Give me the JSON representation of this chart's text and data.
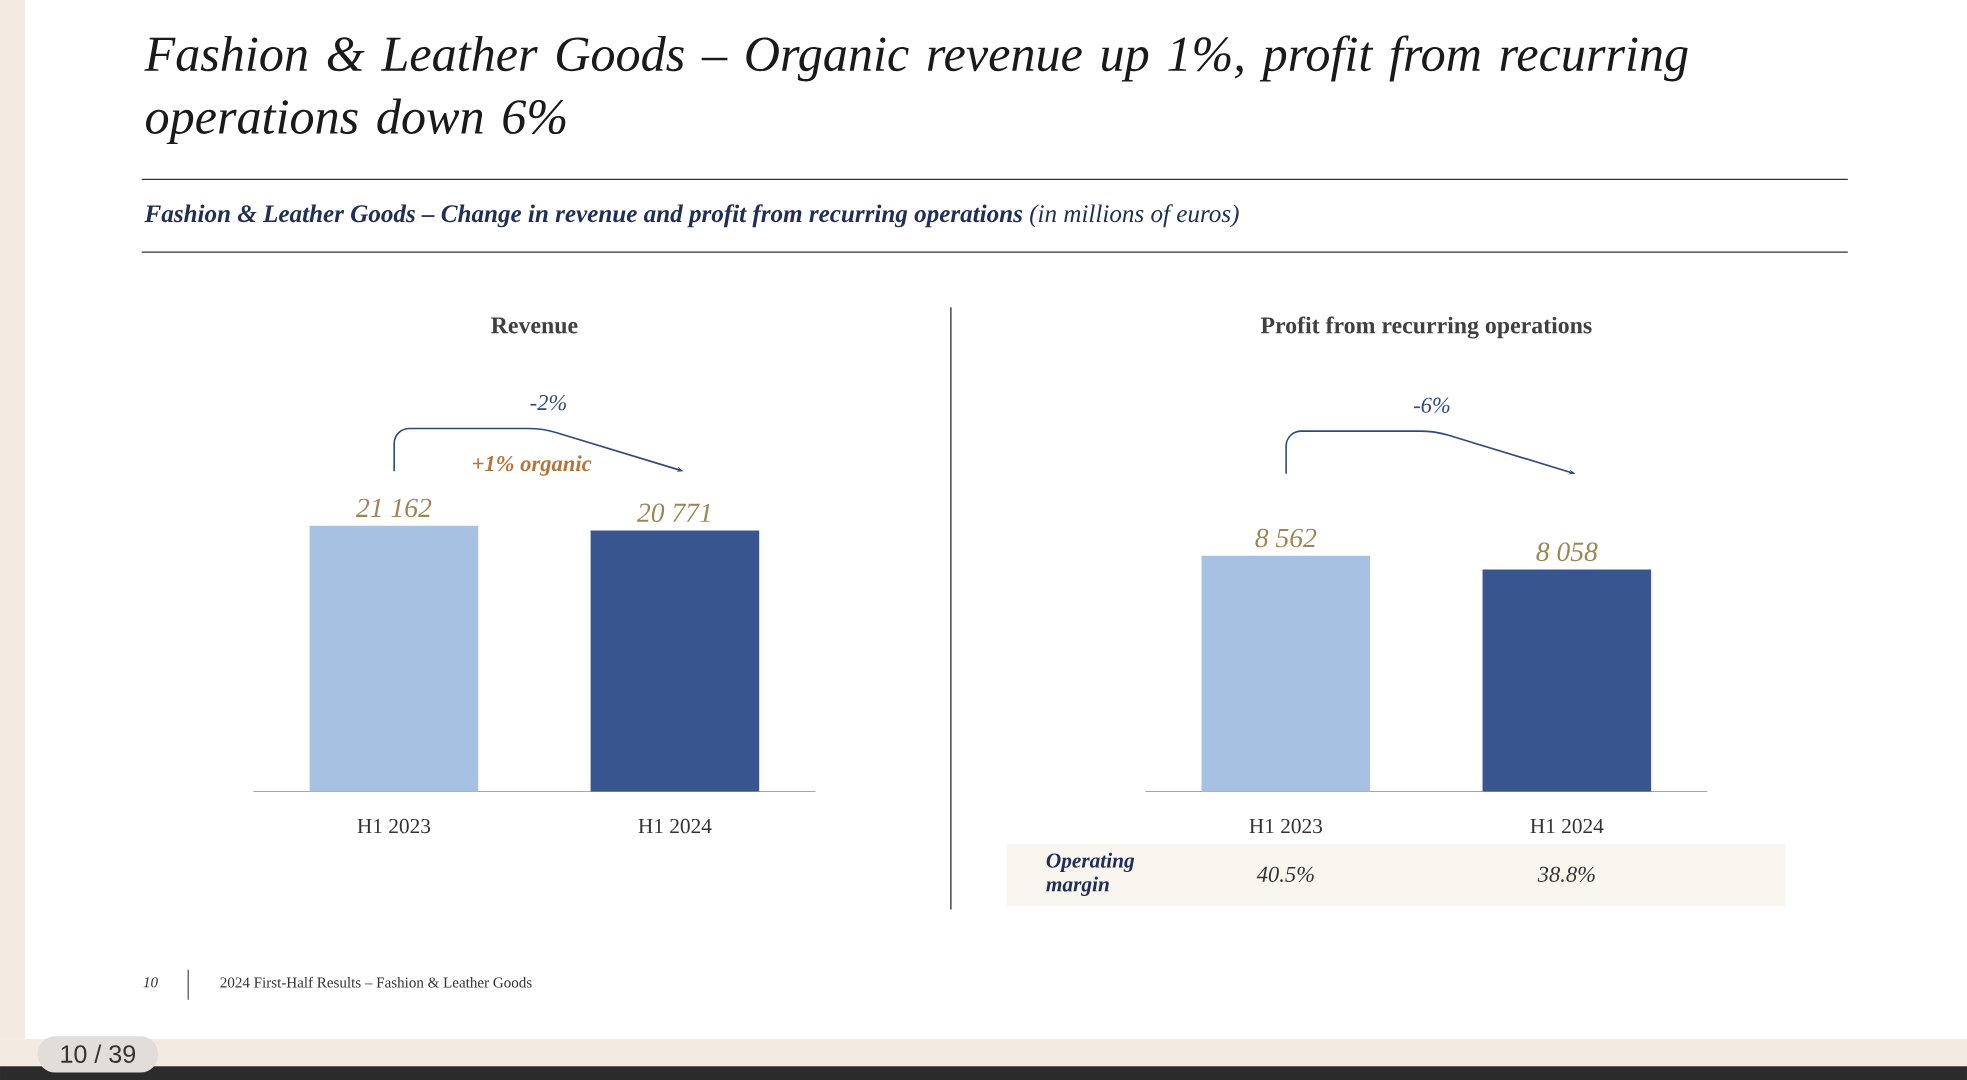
{
  "chart_data": [
    {
      "type": "other",
      "title": "Fashion & Leather Goods – Organic revenue up 1%, profit from recurring operations down 6%",
      "subtitle": "**Fashion & Leather Goods – Change in revenue and profit from recurring operations** (in millions of euros)",
      "annotations": [
        "10",
        "2024 First-Half Results – Fashion & Leather Goods",
        "10 / 39"
      ]
    },
    {
      "type": "bar",
      "title": "Revenue",
      "categories": [
        "H1 2023",
        "H1 2024"
      ],
      "values": [
        21162,
        20771
      ],
      "colors": [
        "#a7c1e3",
        "#38558f"
      ],
      "value_labels": [
        "21 162",
        "20 771"
      ],
      "annotations": [
        "-2%",
        "+1% organic"
      ]
    },
    {
      "type": "bar",
      "title": "Profit from recurring operations",
      "categories": [
        "H1 2023",
        "H1 2024"
      ],
      "values": [
        8562,
        8058
      ],
      "colors": [
        "#a7c1e3",
        "#38558f"
      ],
      "value_labels": [
        "8 562",
        "8 058"
      ],
      "annotations": [
        "-6%",
        "Operating margin",
        "40.5%",
        "38.8%"
      ]
    }
  ]
}
